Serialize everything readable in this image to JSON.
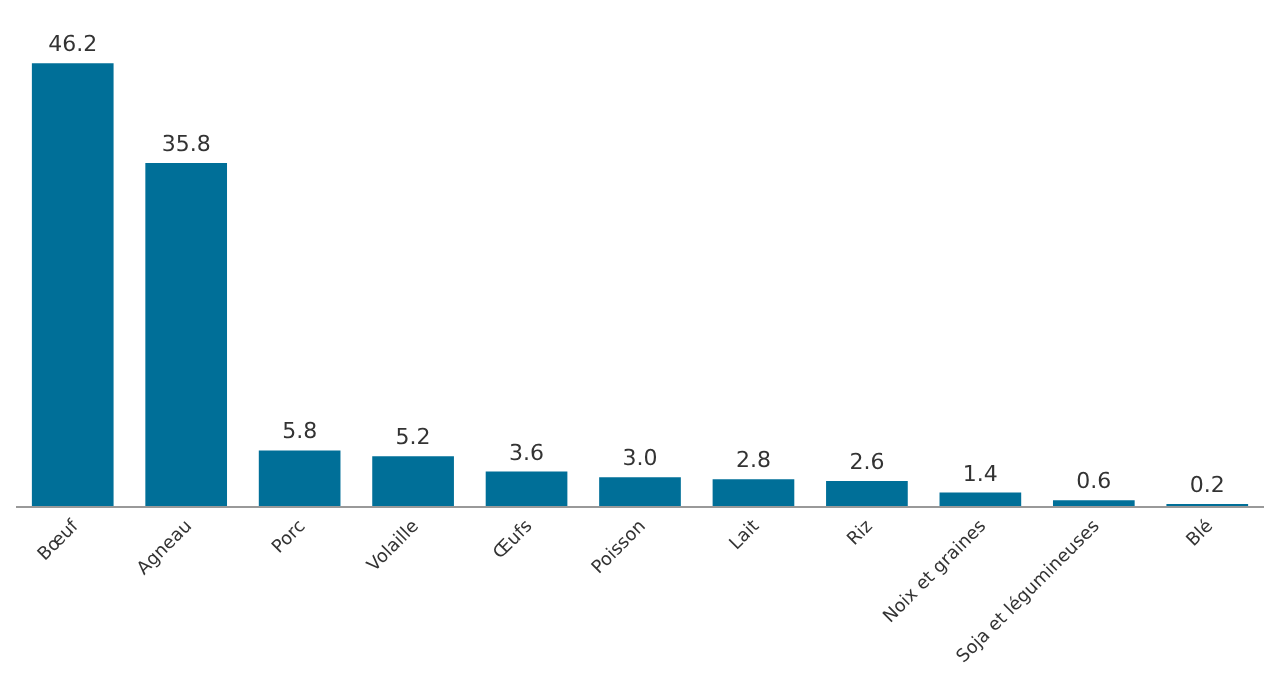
{
  "chart_data": {
    "type": "bar",
    "categories": [
      "Bœuf",
      "Agneau",
      "Porc",
      "Volaille",
      "Œufs",
      "Poisson",
      "Lait",
      "Riz",
      "Noix et graines",
      "Soja et légumineuses",
      "Blé"
    ],
    "values": [
      46.2,
      35.8,
      5.8,
      5.2,
      3.6,
      3.0,
      2.8,
      2.6,
      1.4,
      0.6,
      0.2
    ],
    "value_labels": [
      "46.2",
      "35.8",
      "5.8",
      "5.2",
      "3.6",
      "3.0",
      "2.8",
      "2.6",
      "1.4",
      "0.6",
      "0.2"
    ],
    "color": "#006f98"
  }
}
